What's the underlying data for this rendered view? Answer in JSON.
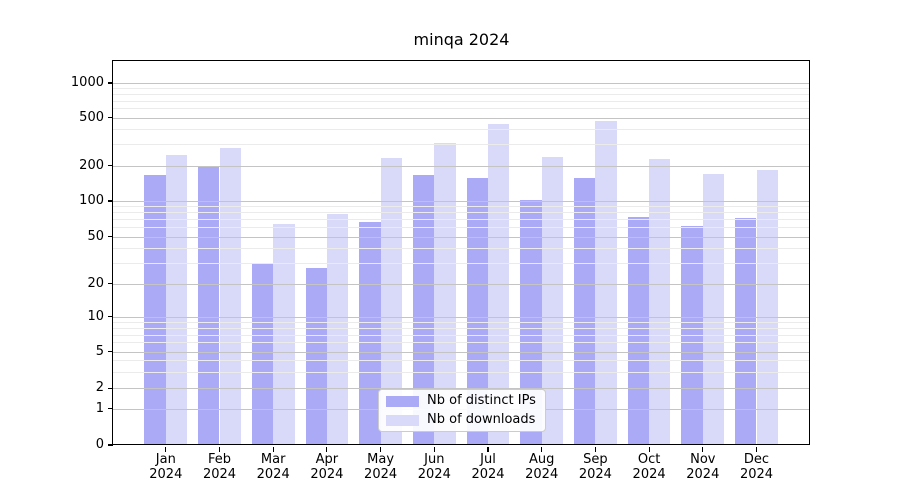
{
  "chart_data": {
    "type": "bar",
    "title": "minqa 2024",
    "scale": "asinh-log",
    "grid": true,
    "legend_position": "lower center",
    "categories": [
      "Jan",
      "Feb",
      "Mar",
      "Apr",
      "May",
      "Jun",
      "Jul",
      "Aug",
      "Sep",
      "Oct",
      "Nov",
      "Dec"
    ],
    "year_label": "2024",
    "series": [
      {
        "name": "Nb of distinct IPs",
        "color": "#aaaaf6",
        "values": [
          165,
          197,
          30,
          27,
          66,
          165,
          156,
          101,
          157,
          74,
          61,
          72
        ]
      },
      {
        "name": "Nb of downloads",
        "color": "#d9d9fa",
        "values": [
          245,
          280,
          64,
          77,
          232,
          305,
          445,
          236,
          470,
          226,
          170,
          184
        ]
      }
    ],
    "yticks": [
      0,
      1,
      2,
      5,
      10,
      20,
      50,
      100,
      200,
      500,
      1000
    ],
    "minor_yticks": [
      3,
      4,
      6,
      7,
      8,
      9,
      30,
      40,
      60,
      70,
      80,
      90,
      300,
      400,
      600,
      700,
      800,
      900
    ],
    "ylim": [
      0,
      1600
    ]
  }
}
